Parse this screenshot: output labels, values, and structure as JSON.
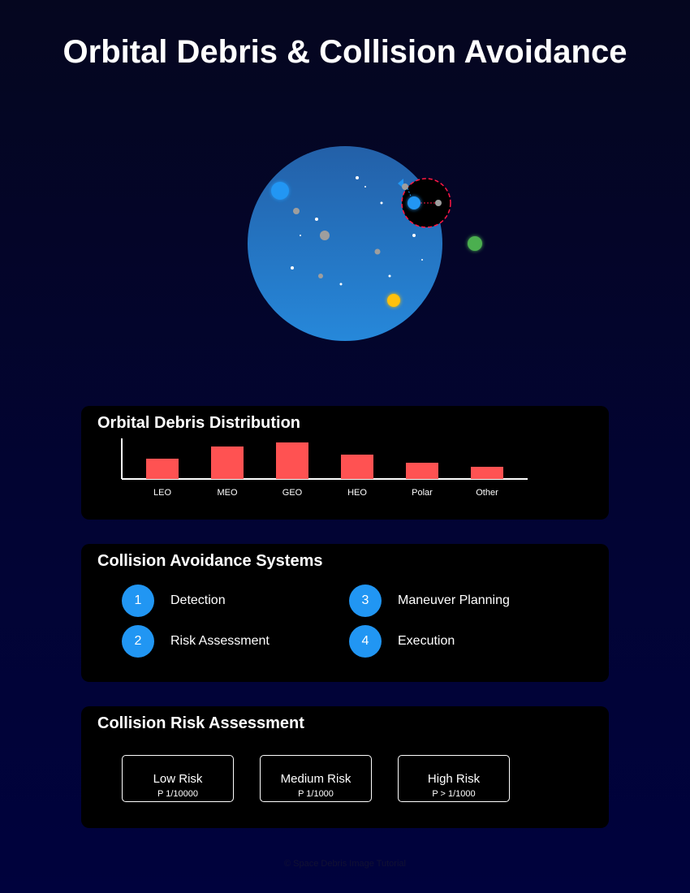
{
  "title": "Orbital Debris & Collision Avoidance",
  "colors": {
    "earth_top": "#2467b0",
    "earth_bottom": "#2585d8",
    "bar": "#ff5252",
    "step_circle": "#2196f3",
    "satellite_blue": "#2196f3",
    "satellite_green": "#4caf50",
    "satellite_yellow": "#ffc107",
    "danger_zone": "#ff1744"
  },
  "distribution": {
    "title": "Orbital Debris Distribution",
    "chart_data": {
      "type": "bar",
      "title": "Orbital Debris Distribution",
      "categories": [
        "LEO",
        "MEO",
        "GEO",
        "HEO",
        "Polar",
        "Other"
      ],
      "values": [
        25,
        40,
        45,
        30,
        20,
        15
      ],
      "ylim": [
        0,
        50
      ],
      "grid": false,
      "legend": "none"
    }
  },
  "systems": {
    "title": "Collision Avoidance Systems",
    "steps": [
      {
        "num": "1",
        "label": "Detection"
      },
      {
        "num": "2",
        "label": "Risk Assessment"
      },
      {
        "num": "3",
        "label": "Maneuver Planning"
      },
      {
        "num": "4",
        "label": "Execution"
      }
    ]
  },
  "risk": {
    "title": "Collision Risk Assessment",
    "levels": [
      {
        "label": "Low Risk",
        "prob": "P 1/10000"
      },
      {
        "label": "Medium Risk",
        "prob": "P 1/1000"
      },
      {
        "label": "High Risk",
        "prob": "P > 1/1000"
      }
    ]
  },
  "footer": "© Space Debris Image Tutorial"
}
